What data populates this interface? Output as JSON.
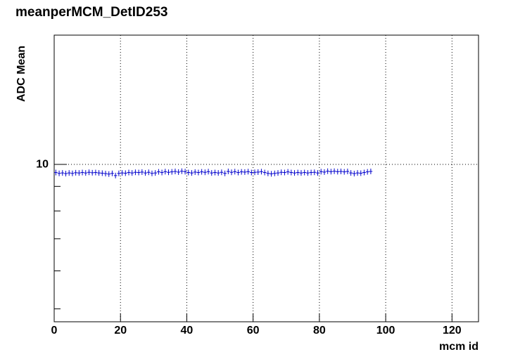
{
  "chart_data": {
    "type": "histogram",
    "title": "meanperMCM_DetID253",
    "x_label": "mcm id",
    "y_label": "ADC Mean",
    "bins": [
      0,
      1,
      2,
      3,
      4,
      5,
      6,
      7,
      8,
      9,
      10,
      11,
      12,
      13,
      14,
      15,
      16,
      17,
      18,
      19,
      20,
      21,
      22,
      23,
      24,
      25,
      26,
      27,
      28,
      29,
      30,
      31,
      32,
      33,
      34,
      35,
      36,
      37,
      38,
      39,
      40,
      41,
      42,
      43,
      44,
      45,
      46,
      47,
      48,
      49,
      50,
      51,
      52,
      53,
      54,
      55,
      56,
      57,
      58,
      59,
      60,
      61,
      62,
      63,
      64,
      65,
      66,
      67,
      68,
      69,
      70,
      71,
      72,
      73,
      74,
      75,
      76,
      77,
      78,
      79,
      80,
      81,
      82,
      83,
      84,
      85,
      86,
      87,
      88,
      89,
      90,
      91,
      92,
      93,
      94,
      95,
      96
    ],
    "values": [
      9.62,
      9.58,
      9.6,
      9.57,
      9.6,
      9.58,
      9.61,
      9.6,
      9.62,
      9.6,
      9.63,
      9.61,
      9.62,
      9.6,
      9.59,
      9.57,
      9.55,
      9.58,
      9.48,
      9.58,
      9.6,
      9.59,
      9.62,
      9.6,
      9.63,
      9.62,
      9.64,
      9.6,
      9.63,
      9.58,
      9.6,
      9.65,
      9.62,
      9.66,
      9.63,
      9.65,
      9.67,
      9.64,
      9.68,
      9.66,
      9.62,
      9.6,
      9.64,
      9.62,
      9.65,
      9.63,
      9.66,
      9.6,
      9.62,
      9.6,
      9.63,
      9.58,
      9.67,
      9.63,
      9.66,
      9.62,
      9.65,
      9.64,
      9.66,
      9.62,
      9.63,
      9.64,
      9.66,
      9.62,
      9.58,
      9.56,
      9.58,
      9.6,
      9.63,
      9.62,
      9.65,
      9.62,
      9.6,
      9.62,
      9.6,
      9.62,
      9.6,
      9.62,
      9.63,
      9.6,
      9.66,
      9.64,
      9.68,
      9.66,
      9.68,
      9.66,
      9.67,
      9.65,
      9.67,
      9.6,
      9.57,
      9.6,
      9.59,
      9.62,
      9.65,
      9.67
    ],
    "color": "#0000cc",
    "xlim": [
      0,
      128
    ],
    "xticks": [
      0,
      20,
      40,
      60,
      80,
      100,
      120
    ],
    "ylim": [
      4.7,
      18.6
    ],
    "yticks": [
      10
    ],
    "yminorticks": [
      5,
      6,
      7,
      8,
      9
    ],
    "log_y": true,
    "grid": true
  }
}
